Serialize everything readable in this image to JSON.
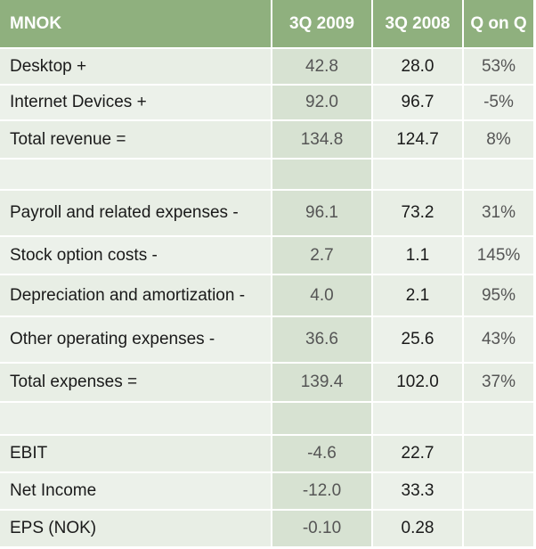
{
  "header": {
    "label": "MNOK",
    "col1": "3Q 2009",
    "col2": "3Q 2008",
    "col3": "Q on Q"
  },
  "rows": [
    {
      "label": "Desktop +",
      "v2009": "42.8",
      "v2008": "28.0",
      "qoq": "53%"
    },
    {
      "label": "Internet Devices +",
      "v2009": "92.0",
      "v2008": "96.7",
      "qoq": "-5%"
    },
    {
      "label": "Total revenue =",
      "v2009": "134.8",
      "v2008": "124.7",
      "qoq": "8%"
    },
    {
      "label": "",
      "v2009": "",
      "v2008": "",
      "qoq": ""
    },
    {
      "label": "Payroll and related expenses -",
      "v2009": "96.1",
      "v2008": "73.2",
      "qoq": "31%"
    },
    {
      "label": "Stock option costs -",
      "v2009": "2.7",
      "v2008": "1.1",
      "qoq": "145%"
    },
    {
      "label": "Depreciation and amortization -",
      "v2009": "4.0",
      "v2008": "2.1",
      "qoq": "95%"
    },
    {
      "label": "Other operating expenses -",
      "v2009": "36.6",
      "v2008": "25.6",
      "qoq": "43%"
    },
    {
      "label": "Total expenses =",
      "v2009": "139.4",
      "v2008": "102.0",
      "qoq": "37%"
    },
    {
      "label": "",
      "v2009": "",
      "v2008": "",
      "qoq": ""
    },
    {
      "label": "EBIT",
      "v2009": "-4.6",
      "v2008": "22.7",
      "qoq": ""
    },
    {
      "label": "Net Income",
      "v2009": "-12.0",
      "v2008": "33.3",
      "qoq": ""
    },
    {
      "label": "EPS (NOK)",
      "v2009": "-0.10",
      "v2008": "0.28",
      "qoq": ""
    }
  ]
}
